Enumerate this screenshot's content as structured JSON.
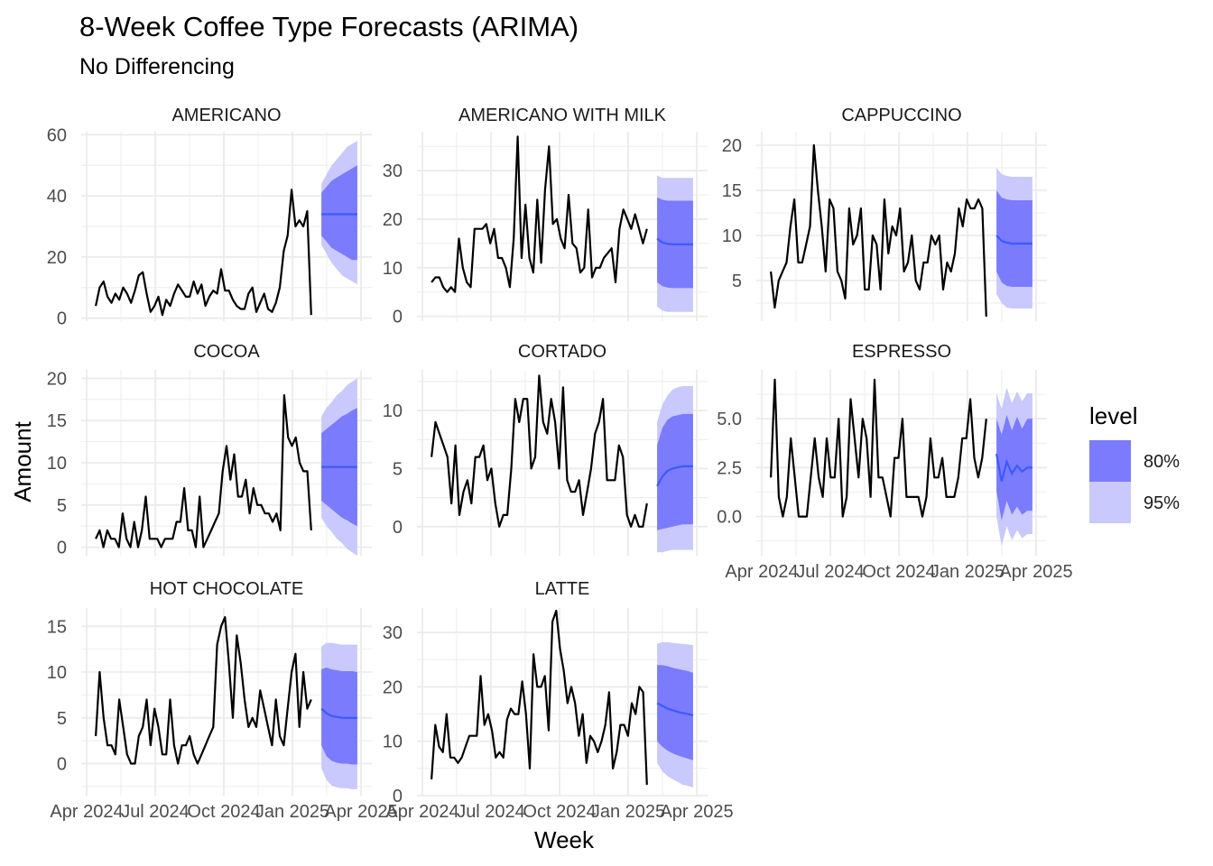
{
  "chart_data": {
    "type": "line",
    "title": "8-Week Coffee Type Forecasts (ARIMA)",
    "subtitle": "No Differencing",
    "xlabel": "Week",
    "ylabel": "Amount",
    "x_tick_labels": [
      "Apr 2024",
      "Jul 2024",
      "Oct 2024",
      "Jan 2025",
      "Apr 2025"
    ],
    "legend": {
      "title": "level",
      "entries": [
        {
          "label": "80%",
          "color": "#7b7bfe"
        },
        {
          "label": "95%",
          "color": "#c9c9fe"
        }
      ]
    },
    "colors": {
      "history": "#000000",
      "forecast_mean": "#3b5bfc",
      "band80": "#7b7bfe",
      "band95": "#c9c9fe",
      "grid": "#ebebeb"
    },
    "history_weeks": 43,
    "forecast_weeks": 8,
    "panels": [
      {
        "name": "AMERICANO",
        "ylim": [
          -1,
          61
        ],
        "yticks": [
          0,
          20,
          40,
          60
        ],
        "yticklabels": [
          "0",
          "20",
          "40",
          "60"
        ],
        "history": [
          4,
          10,
          12,
          7,
          5,
          8,
          6,
          10,
          8,
          5,
          9,
          14,
          15,
          8,
          2,
          4,
          7,
          1,
          6,
          4,
          8,
          11,
          9,
          7,
          7,
          12,
          8,
          11,
          4,
          7,
          9,
          8,
          16,
          9,
          9,
          6,
          4,
          3,
          3,
          8,
          10,
          2,
          5,
          8,
          3,
          2,
          5,
          10,
          22,
          27,
          42,
          30,
          32,
          30,
          35,
          1
        ],
        "forecast": {
          "mean": [
            34,
            34,
            34,
            34,
            34,
            34,
            34,
            34
          ],
          "lo80": [
            27,
            25,
            23,
            22,
            21,
            20,
            19,
            19
          ],
          "hi80": [
            41,
            43,
            45,
            46,
            47,
            48,
            49,
            50
          ],
          "lo95": [
            24,
            21,
            18,
            16,
            14,
            13,
            12,
            11
          ],
          "hi95": [
            44,
            47,
            50,
            52,
            54,
            56,
            57,
            58
          ]
        }
      },
      {
        "name": "AMERICANO WITH MILK",
        "ylim": [
          -1,
          38
        ],
        "yticks": [
          0,
          10,
          20,
          30
        ],
        "yticklabels": [
          "0",
          "10",
          "20",
          "30"
        ],
        "history": [
          7,
          8,
          8,
          6,
          5,
          6,
          5,
          16,
          10,
          7,
          6,
          18,
          18,
          18,
          19,
          15,
          18,
          12,
          12,
          10,
          6,
          16,
          37,
          12,
          23,
          12,
          9,
          24,
          11,
          26,
          35,
          19,
          20,
          16,
          14,
          25,
          15,
          14,
          9,
          10,
          22,
          8,
          10,
          10,
          12,
          13,
          14,
          7,
          18,
          22,
          20,
          18,
          21,
          18,
          15,
          18
        ],
        "forecast": {
          "mean": [
            16,
            15.2,
            14.9,
            14.8,
            14.8,
            14.8,
            14.8,
            14.8
          ],
          "lo80": [
            7,
            6.2,
            5.9,
            5.8,
            5.8,
            5.8,
            5.8,
            5.8
          ],
          "hi80": [
            24.5,
            24,
            23.8,
            23.8,
            23.8,
            23.8,
            23.8,
            23.8
          ],
          "lo95": [
            2,
            1.2,
            0.9,
            0.9,
            0.9,
            0.9,
            0.9,
            0.9
          ],
          "hi95": [
            29,
            28.5,
            28.5,
            28.5,
            28.5,
            28.5,
            28.5,
            28.5
          ]
        }
      },
      {
        "name": "CAPPUCCINO",
        "ylim": [
          0.5,
          21.5
        ],
        "yticks": [
          5,
          10,
          15,
          20
        ],
        "yticklabels": [
          "5",
          "10",
          "15",
          "20"
        ],
        "history": [
          6,
          2,
          5,
          6,
          7,
          11,
          14,
          7,
          7,
          9,
          11,
          20,
          15,
          11,
          6,
          14,
          13,
          6,
          5,
          3,
          13,
          9,
          10,
          13,
          4,
          4,
          10,
          9,
          4,
          14,
          8,
          11,
          10,
          13,
          6,
          7,
          10,
          5,
          4,
          7,
          7,
          10,
          9,
          10,
          4,
          7,
          6,
          8,
          13,
          11,
          14,
          13,
          13,
          14,
          13,
          1
        ],
        "forecast": {
          "mean": [
            10,
            9.4,
            9.2,
            9.1,
            9.1,
            9.1,
            9.1,
            9.1
          ],
          "lo80": [
            6,
            4.8,
            4.4,
            4.3,
            4.3,
            4.3,
            4.3,
            4.3
          ],
          "hi80": [
            15,
            14.2,
            14,
            13.9,
            13.9,
            13.9,
            13.9,
            13.9
          ],
          "lo95": [
            3.5,
            2.5,
            2,
            1.9,
            1.9,
            1.9,
            1.9,
            1.9
          ],
          "hi95": [
            17.5,
            16.8,
            16.6,
            16.5,
            16.5,
            16.5,
            16.5,
            16.5
          ]
        }
      },
      {
        "name": "COCOA",
        "ylim": [
          -1,
          21
        ],
        "yticks": [
          0,
          5,
          10,
          15,
          20
        ],
        "yticklabels": [
          "0",
          "5",
          "10",
          "15",
          "20"
        ],
        "history": [
          1,
          2,
          0,
          2,
          1,
          1,
          0,
          4,
          1,
          0,
          3,
          0,
          2,
          6,
          1,
          1,
          1,
          0,
          1,
          1,
          1,
          3,
          3,
          7,
          2,
          2,
          0,
          6,
          0,
          1,
          2,
          3,
          4,
          9,
          12,
          8,
          11,
          6,
          6,
          8,
          4,
          7,
          5,
          5,
          4,
          4,
          3,
          4,
          2,
          18,
          13,
          12,
          13,
          10,
          9,
          9,
          2
        ],
        "forecast": {
          "mean": [
            9.5,
            9.5,
            9.5,
            9.5,
            9.5,
            9.5,
            9.5,
            9.5
          ],
          "lo80": [
            5.5,
            5,
            4.5,
            4,
            3.5,
            3.2,
            2.8,
            2.5
          ],
          "hi80": [
            13.5,
            14,
            14.5,
            15,
            15.5,
            15.8,
            16.2,
            16.5
          ],
          "lo95": [
            3.5,
            2.5,
            1.8,
            1,
            0.5,
            -0.2,
            -0.6,
            -1
          ],
          "hi95": [
            15.5,
            16.5,
            17.2,
            18,
            18.5,
            19.2,
            19.6,
            20
          ]
        }
      },
      {
        "name": "CORTADO",
        "ylim": [
          -2.5,
          13.5
        ],
        "yticks": [
          0,
          5,
          10
        ],
        "yticklabels": [
          "0",
          "5",
          "10"
        ],
        "history": [
          6,
          9,
          8,
          7,
          6,
          2,
          7,
          1,
          3,
          4,
          2,
          6,
          6,
          7,
          4,
          5,
          2,
          0,
          1,
          1,
          5,
          11,
          9,
          11,
          11,
          5,
          6,
          13,
          9,
          8,
          11,
          9,
          5,
          12,
          4,
          3,
          3,
          4,
          1,
          3,
          5,
          8,
          9,
          11,
          4,
          4,
          4,
          7,
          6,
          1,
          0,
          1,
          0,
          0,
          2
        ],
        "forecast": {
          "mean": [
            3.5,
            4.3,
            4.8,
            5,
            5.1,
            5.2,
            5.2,
            5.2
          ],
          "lo80": [
            -0.3,
            -0.2,
            -0.1,
            0,
            0.1,
            0.2,
            0.2,
            0.2
          ],
          "hi80": [
            7,
            8.5,
            9.2,
            9.5,
            9.6,
            9.7,
            9.7,
            9.7
          ],
          "lo95": [
            -2.2,
            -2.2,
            -2.1,
            -2,
            -2,
            -2,
            -2,
            -2
          ],
          "hi95": [
            9,
            10.5,
            11.3,
            11.8,
            12,
            12.1,
            12.1,
            12.1
          ]
        }
      },
      {
        "name": "ESPRESSO",
        "ylim": [
          -2,
          7.5
        ],
        "yticks": [
          0,
          2.5,
          5
        ],
        "yticklabels": [
          "0.0",
          "2.5",
          "5.0"
        ],
        "history": [
          2,
          7,
          1,
          0,
          1,
          4,
          2,
          0,
          0,
          0,
          2,
          4,
          2,
          1,
          4,
          2,
          2,
          5,
          0,
          1,
          6,
          4,
          2,
          5,
          4,
          1,
          7,
          2,
          2,
          1,
          0,
          3,
          3,
          5,
          1,
          1,
          1,
          1,
          0,
          1,
          4,
          2,
          2,
          3,
          1,
          1,
          1,
          2,
          4,
          4,
          6,
          3,
          2,
          3,
          5
        ],
        "forecast": {
          "mean": [
            3.2,
            1.8,
            2.8,
            2.2,
            2.6,
            2.3,
            2.5,
            2.5
          ],
          "lo80": [
            1.3,
            -0.2,
            0.8,
            0.1,
            0.5,
            0.1,
            0.3,
            0.3
          ],
          "hi80": [
            5,
            4.2,
            5.2,
            4.4,
            5.1,
            4.5,
            5,
            5
          ],
          "lo95": [
            0,
            -1.5,
            -0.5,
            -1.2,
            -0.7,
            -1.1,
            -0.9,
            -0.9
          ],
          "hi95": [
            6.3,
            5.5,
            6.6,
            5.8,
            6.4,
            5.9,
            6.3,
            6.3
          ]
        }
      },
      {
        "name": "HOT CHOCOLATE",
        "ylim": [
          -3.5,
          17
        ],
        "yticks": [
          0,
          5,
          10,
          15
        ],
        "yticklabels": [
          "0",
          "5",
          "10",
          "15"
        ],
        "history": [
          3,
          10,
          5,
          2,
          2,
          1,
          7,
          4,
          1,
          0,
          0,
          3,
          4,
          7,
          2,
          6,
          4,
          1,
          1,
          7,
          2,
          0,
          2,
          2,
          3,
          1,
          0,
          1,
          2,
          3,
          4,
          13,
          15,
          16,
          11,
          5,
          14,
          11,
          7,
          4,
          5,
          4,
          8,
          6,
          4,
          2,
          7,
          3,
          2,
          6,
          10,
          12,
          4,
          10,
          6,
          7
        ],
        "forecast": {
          "mean": [
            6,
            5.5,
            5.2,
            5.1,
            5,
            5,
            5,
            5
          ],
          "lo80": [
            2,
            0.8,
            0.3,
            0.1,
            0,
            0,
            -0.1,
            -0.1
          ],
          "hi80": [
            10.3,
            10.5,
            10.3,
            10.2,
            10.1,
            10.1,
            10.1,
            10
          ],
          "lo95": [
            -0.5,
            -1.8,
            -2.4,
            -2.6,
            -2.7,
            -2.7,
            -2.8,
            -2.8
          ],
          "hi95": [
            12.8,
            13.2,
            13.2,
            13.1,
            13,
            13,
            13,
            13
          ]
        }
      },
      {
        "name": "LATTE",
        "ylim": [
          0,
          34.5
        ],
        "yticks": [
          0,
          10,
          20,
          30
        ],
        "yticklabels": [
          "0",
          "10",
          "20",
          "30"
        ],
        "history": [
          3,
          13,
          9,
          8,
          15,
          7,
          7,
          6,
          7,
          9,
          11,
          11,
          11,
          22,
          13,
          15,
          12,
          7,
          8,
          7,
          14,
          16,
          15,
          15,
          21,
          15,
          5,
          26,
          20,
          20,
          22,
          12,
          32,
          34,
          27,
          23,
          17,
          20,
          17,
          11,
          15,
          6,
          11,
          10,
          8,
          10,
          13,
          19,
          5,
          8,
          13,
          13,
          11,
          17,
          15,
          20,
          19,
          2
        ],
        "forecast": {
          "mean": [
            17,
            16.5,
            16,
            15.7,
            15.4,
            15.2,
            15,
            14.8
          ],
          "lo80": [
            10,
            9,
            8.3,
            7.8,
            7.4,
            7.1,
            6.8,
            6.5
          ],
          "hi80": [
            24,
            24,
            23.8,
            23.5,
            23.3,
            23.1,
            22.9,
            22.6
          ],
          "lo95": [
            6,
            4.5,
            3.6,
            3,
            2.5,
            2,
            1.8,
            1.5
          ],
          "hi95": [
            28,
            28.2,
            28.2,
            28.1,
            28,
            27.9,
            27.8,
            27.7
          ]
        }
      }
    ]
  }
}
